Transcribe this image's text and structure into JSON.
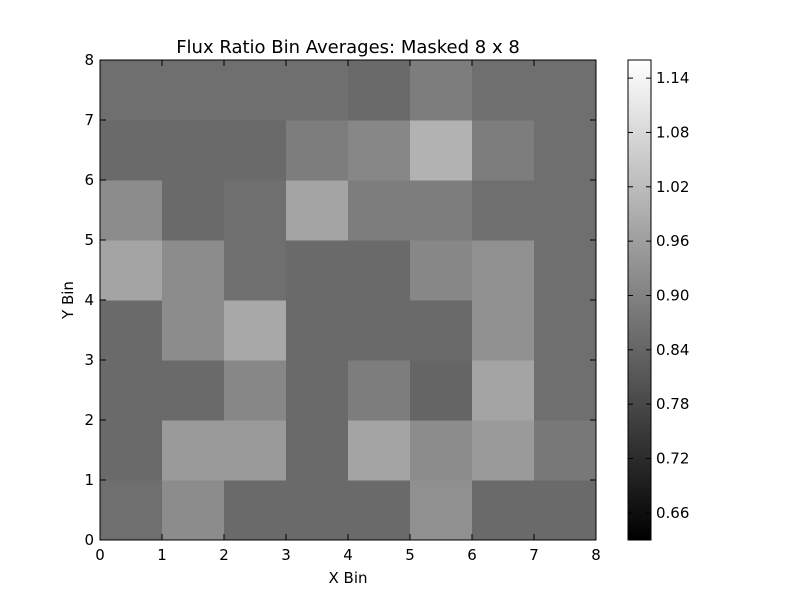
{
  "chart_data": {
    "type": "heatmap",
    "title": "Flux Ratio Bin Averages: Masked 8 x 8",
    "xlabel": "X Bin",
    "ylabel": "Y Bin",
    "xlim": [
      0,
      8
    ],
    "ylim": [
      0,
      8
    ],
    "x_ticks": [
      "0",
      "1",
      "2",
      "3",
      "4",
      "5",
      "6",
      "7",
      "8"
    ],
    "y_ticks": [
      "0",
      "1",
      "2",
      "3",
      "4",
      "5",
      "6",
      "7",
      "8"
    ],
    "colormap": "gray",
    "colorbar": {
      "vmin": 0.63,
      "vmax": 1.16,
      "ticks": [
        "0.66",
        "0.72",
        "0.78",
        "0.84",
        "0.90",
        "0.96",
        "1.02",
        "1.08",
        "1.14"
      ]
    },
    "values_note": "rows ordered bottom (y 0-1) to top (y 7-8); columns x 0-1 to 7-8",
    "values": [
      [
        0.86,
        0.92,
        0.85,
        0.85,
        0.85,
        0.93,
        0.85,
        0.85
      ],
      [
        0.85,
        0.95,
        0.95,
        0.85,
        0.97,
        0.92,
        0.95,
        0.88
      ],
      [
        0.85,
        0.85,
        0.91,
        0.85,
        0.89,
        0.84,
        0.97,
        0.86
      ],
      [
        0.85,
        0.92,
        0.98,
        0.85,
        0.85,
        0.85,
        0.93,
        0.86
      ],
      [
        0.97,
        0.92,
        0.86,
        0.85,
        0.85,
        0.91,
        0.93,
        0.86
      ],
      [
        0.92,
        0.85,
        0.86,
        0.97,
        0.89,
        0.89,
        0.86,
        0.86
      ],
      [
        0.85,
        0.85,
        0.85,
        0.89,
        0.91,
        1.0,
        0.89,
        0.86
      ],
      [
        0.86,
        0.86,
        0.86,
        0.86,
        0.85,
        0.89,
        0.86,
        0.86
      ]
    ]
  }
}
